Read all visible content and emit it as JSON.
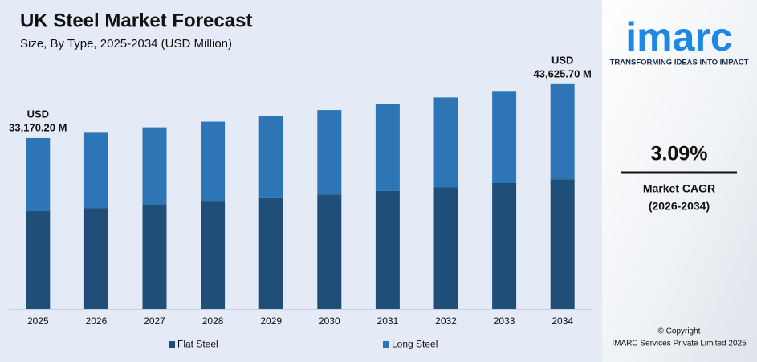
{
  "chart_data": {
    "type": "stacked_bar",
    "title": "UK Steel Market Forecast",
    "subtitle": "Size, By Type, 2025-2034 (USD Million)",
    "categories": [
      "2025",
      "2026",
      "2027",
      "2028",
      "2029",
      "2030",
      "2031",
      "2032",
      "2033",
      "2034"
    ],
    "series": [
      {
        "name": "Flat Steel",
        "color": "#1f4e79",
        "values": [
          19000,
          19600,
          20200,
          20850,
          21500,
          22200,
          22900,
          23650,
          24450,
          25200
        ]
      },
      {
        "name": "Long Steel",
        "color": "#2e75b6",
        "values": [
          14170.2,
          14600,
          15050,
          15500,
          15950,
          16400,
          16900,
          17400,
          17850,
          18425.7
        ]
      }
    ],
    "annotations": [
      {
        "category": "2025",
        "lines": [
          "USD",
          "33,170.20 M"
        ]
      },
      {
        "category": "2034",
        "lines": [
          "USD",
          "43,625.70 M"
        ]
      }
    ],
    "ylim": [
      0,
      45000
    ]
  },
  "sidebar": {
    "logo": "imarc",
    "tagline": "TRANSFORMING IDEAS INTO IMPACT",
    "cagr": "3.09%",
    "cagr_label": "Market CAGR",
    "cagr_period": "(2026-2034)",
    "copyright": "© Copyright",
    "company": "IMARC Services Private Limited 2025"
  }
}
